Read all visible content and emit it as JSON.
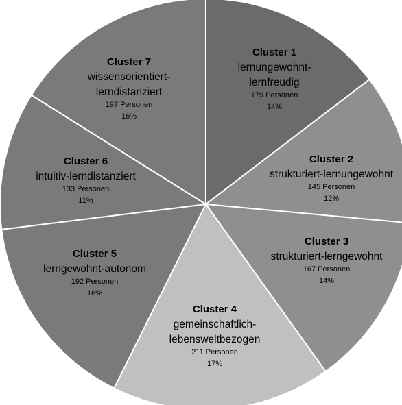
{
  "chart_data": {
    "type": "pie",
    "legend": "none",
    "slices": [
      {
        "title": "Cluster 1",
        "name_lines": [
          "lernungewohnt-",
          "lernfreudig"
        ],
        "count": 179,
        "count_label": "179 Personen",
        "percent": 14,
        "percent_label": "14%",
        "color": "#6b6b6b"
      },
      {
        "title": "Cluster 2",
        "name_lines": [
          "strukturiert-lernungewohnt"
        ],
        "count": 145,
        "count_label": "145 Personen",
        "percent": 12,
        "percent_label": "12%",
        "color": "#8f8f8f"
      },
      {
        "title": "Cluster 3",
        "name_lines": [
          "strukturiert-lerngewohnt"
        ],
        "count": 167,
        "count_label": "167 Personen",
        "percent": 14,
        "percent_label": "14%",
        "color": "#8f8f8f"
      },
      {
        "title": "Cluster 4",
        "name_lines": [
          "gemeinschaftlich-",
          "lebensweltbezogen"
        ],
        "count": 211,
        "count_label": "211 Personen",
        "percent": 17,
        "percent_label": "17%",
        "color": "#c0c0c0"
      },
      {
        "title": "Cluster 5",
        "name_lines": [
          "lerngewohnt-autonom"
        ],
        "count": 192,
        "count_label": "192 Personen",
        "percent": 16,
        "percent_label": "16%",
        "color": "#7a7a7a"
      },
      {
        "title": "Cluster 6",
        "name_lines": [
          "intuitiv-lerndistanziert"
        ],
        "count": 133,
        "count_label": "133 Personen",
        "percent": 11,
        "percent_label": "11%",
        "color": "#7a7a7a"
      },
      {
        "title": "Cluster 7",
        "name_lines": [
          "wissensorientiert-",
          "lerndistanziert"
        ],
        "count": 197,
        "count_label": "197 Personen",
        "percent": 16,
        "percent_label": "16%",
        "color": "#7a7a7a"
      }
    ]
  }
}
